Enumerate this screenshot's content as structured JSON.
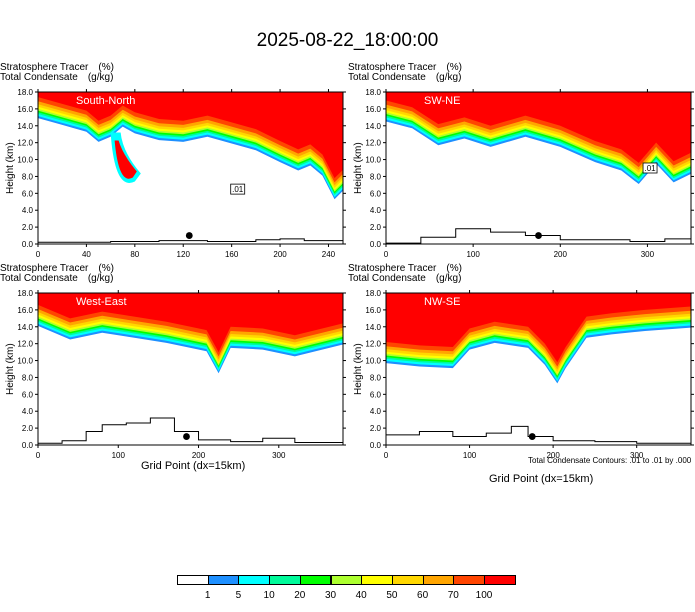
{
  "title": "2025-08-22_18:00:00",
  "footnote": "Total Condensate Contours: .01 to .01 by .000",
  "xlabel": "Grid Point (dx=15km)",
  "ylabel": "Height (km)",
  "line1": {
    "name": "Stratosphere Tracer",
    "unit": "(%)"
  },
  "line2": {
    "name": "Total Condensate",
    "unit": "(g/kg)"
  },
  "colorbar": {
    "levels": [
      "1",
      "5",
      "10",
      "20",
      "30",
      "40",
      "50",
      "60",
      "70",
      "100"
    ],
    "colors": [
      "#ffffff",
      "#1e90ff",
      "#00ffff",
      "#00fa9a",
      "#00ff00",
      "#adff2f",
      "#ffff00",
      "#ffd700",
      "#ffa500",
      "#ff4500",
      "#ff0000"
    ]
  },
  "chart_data": [
    {
      "type": "area",
      "panel": "South-North",
      "xlim": [
        0,
        252
      ],
      "ylim": [
        0,
        18
      ],
      "xticks": [
        0,
        40,
        80,
        120,
        160,
        200,
        240
      ],
      "yticks": [
        "0.0",
        "2.0",
        "4.0",
        "6.0",
        "8.0",
        "10.0",
        "12.0",
        "14.0",
        "16.0",
        "18.0"
      ],
      "tropopause_height_km": [
        [
          0,
          15.8
        ],
        [
          20,
          15.0
        ],
        [
          40,
          14.2
        ],
        [
          50,
          13.0
        ],
        [
          60,
          13.6
        ],
        [
          70,
          14.8
        ],
        [
          80,
          14.0
        ],
        [
          100,
          13.2
        ],
        [
          120,
          13.0
        ],
        [
          140,
          13.6
        ],
        [
          160,
          12.8
        ],
        [
          180,
          12.0
        ],
        [
          200,
          10.6
        ],
        [
          215,
          9.6
        ],
        [
          225,
          10.2
        ],
        [
          235,
          9.0
        ],
        [
          245,
          6.2
        ],
        [
          252,
          7.2
        ]
      ],
      "intrusion": {
        "x": [
          60,
          80
        ],
        "bottom_km": 7.4
      },
      "terrain_km": [
        [
          0,
          0.2
        ],
        [
          60,
          0.3
        ],
        [
          100,
          0.4
        ],
        [
          140,
          0.3
        ],
        [
          180,
          0.5
        ],
        [
          200,
          0.6
        ],
        [
          220,
          0.4
        ],
        [
          240,
          0.4
        ],
        [
          252,
          0.2
        ]
      ],
      "marker_x": 125,
      "contour_label": ".01",
      "contour_label_pos": [
        165,
        6.5
      ]
    },
    {
      "type": "area",
      "panel": "SW-NE",
      "xlim": [
        0,
        350
      ],
      "ylim": [
        0,
        18
      ],
      "xticks": [
        0,
        100,
        200,
        300
      ],
      "yticks": [
        "0.0",
        "2.0",
        "4.0",
        "6.0",
        "8.0",
        "10.0",
        "12.0",
        "14.0",
        "16.0",
        "18.0"
      ],
      "tropopause_height_km": [
        [
          0,
          15.4
        ],
        [
          30,
          14.6
        ],
        [
          60,
          12.6
        ],
        [
          90,
          13.4
        ],
        [
          120,
          12.4
        ],
        [
          160,
          13.6
        ],
        [
          200,
          12.4
        ],
        [
          240,
          10.6
        ],
        [
          270,
          9.6
        ],
        [
          290,
          8.0
        ],
        [
          310,
          10.4
        ],
        [
          330,
          8.2
        ],
        [
          350,
          9.2
        ]
      ],
      "terrain_km": [
        [
          0,
          0.1
        ],
        [
          40,
          0.8
        ],
        [
          80,
          1.8
        ],
        [
          120,
          1.4
        ],
        [
          160,
          1.0
        ],
        [
          200,
          0.5
        ],
        [
          240,
          0.5
        ],
        [
          280,
          0.3
        ],
        [
          320,
          0.6
        ],
        [
          350,
          1.2
        ]
      ],
      "marker_x": 175,
      "contour_label": ".01",
      "contour_label_pos": [
        303,
        9.0
      ]
    },
    {
      "type": "area",
      "panel": "West-East",
      "xlim": [
        0,
        380
      ],
      "ylim": [
        0,
        18
      ],
      "xticks": [
        0,
        100,
        200,
        300
      ],
      "yticks": [
        "0.0",
        "2.0",
        "4.0",
        "6.0",
        "8.0",
        "10.0",
        "12.0",
        "14.0",
        "16.0",
        "18.0"
      ],
      "tropopause_height_km": [
        [
          0,
          15.0
        ],
        [
          40,
          13.4
        ],
        [
          80,
          14.2
        ],
        [
          120,
          13.6
        ],
        [
          160,
          13.0
        ],
        [
          190,
          12.4
        ],
        [
          210,
          12.0
        ],
        [
          225,
          9.4
        ],
        [
          240,
          12.4
        ],
        [
          280,
          12.2
        ],
        [
          320,
          11.4
        ],
        [
          380,
          12.8
        ]
      ],
      "terrain_km": [
        [
          0,
          0.2
        ],
        [
          30,
          0.5
        ],
        [
          60,
          1.6
        ],
        [
          80,
          2.4
        ],
        [
          110,
          2.6
        ],
        [
          140,
          3.2
        ],
        [
          170,
          1.6
        ],
        [
          200,
          0.6
        ],
        [
          240,
          0.4
        ],
        [
          280,
          0.8
        ],
        [
          320,
          0.3
        ],
        [
          380,
          0.2
        ]
      ],
      "marker_x": 185
    },
    {
      "type": "area",
      "panel": "NW-SE",
      "xlim": [
        0,
        365
      ],
      "ylim": [
        0,
        18
      ],
      "xticks": [
        0,
        100,
        200,
        300
      ],
      "yticks": [
        "0.0",
        "2.0",
        "4.0",
        "6.0",
        "8.0",
        "10.0",
        "12.0",
        "14.0",
        "16.0",
        "18.0"
      ],
      "tropopause_height_km": [
        [
          0,
          10.6
        ],
        [
          40,
          10.2
        ],
        [
          80,
          10.0
        ],
        [
          100,
          12.2
        ],
        [
          130,
          13.0
        ],
        [
          170,
          12.4
        ],
        [
          190,
          10.4
        ],
        [
          205,
          8.2
        ],
        [
          215,
          10.0
        ],
        [
          240,
          13.6
        ],
        [
          270,
          14.0
        ],
        [
          310,
          14.4
        ],
        [
          365,
          14.8
        ]
      ],
      "terrain_km": [
        [
          0,
          1.2
        ],
        [
          40,
          1.6
        ],
        [
          80,
          1.0
        ],
        [
          120,
          1.4
        ],
        [
          150,
          2.2
        ],
        [
          170,
          1.0
        ],
        [
          200,
          0.5
        ],
        [
          250,
          0.4
        ],
        [
          300,
          0.2
        ],
        [
          365,
          0.2
        ]
      ],
      "marker_x": 175
    }
  ]
}
